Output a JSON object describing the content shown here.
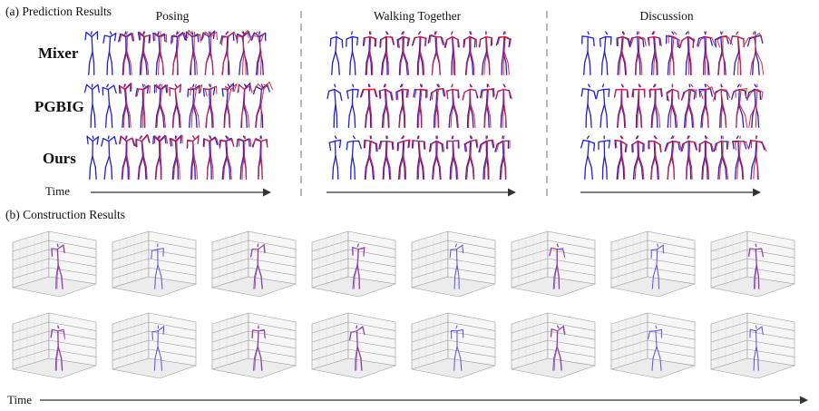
{
  "figure": {
    "section_a_title": "(a) Prediction Results",
    "section_b_title": "(b) Construction Results",
    "groups": [
      "Posing",
      "Walking Together",
      "Discussion"
    ],
    "row_labels": [
      "Mixer",
      "PGBIG",
      "Ours"
    ],
    "time_label_a": "Time",
    "time_label_b": "Time",
    "colors": {
      "ground_truth": "#1f1fd6",
      "prediction": "#e8222c",
      "axis_box": "#9a9a9a",
      "arrow": "#333333"
    },
    "frames_per_group": 11,
    "plots_per_row_b": 8,
    "rows_b": 2
  }
}
